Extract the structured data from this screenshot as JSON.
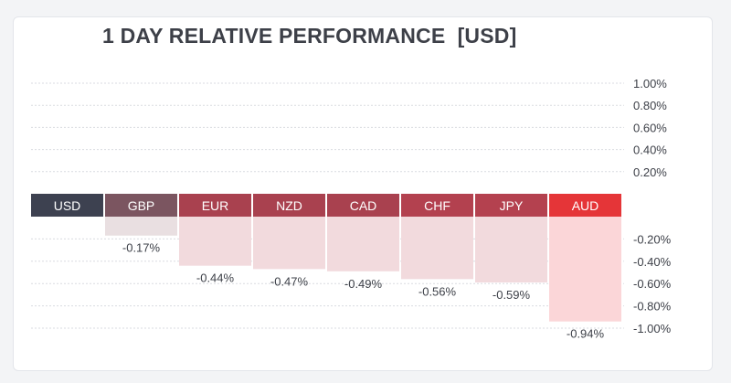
{
  "chart_data": {
    "type": "bar",
    "title": "1 DAY RELATIVE PERFORMANCE  [USD]",
    "categories": [
      "USD",
      "GBP",
      "EUR",
      "NZD",
      "CAD",
      "CHF",
      "JPY",
      "AUD"
    ],
    "values": [
      0,
      -0.17,
      -0.44,
      -0.47,
      -0.49,
      -0.56,
      -0.59,
      -0.94
    ],
    "value_labels": [
      "",
      "-0.17%",
      "-0.44%",
      "-0.47%",
      "-0.49%",
      "-0.56%",
      "-0.59%",
      "-0.94%"
    ],
    "ylim": [
      -1.0,
      1.0
    ],
    "yticks": [
      1.0,
      0.8,
      0.6,
      0.4,
      0.2,
      -0.2,
      -0.4,
      -0.6,
      -0.8,
      -1.0
    ],
    "ytick_labels": [
      "1.00%",
      "0.80%",
      "0.60%",
      "0.40%",
      "0.20%",
      "-0.20%",
      "-0.40%",
      "-0.60%",
      "-0.80%",
      "-1.00%"
    ],
    "xlabel": "",
    "ylabel": "",
    "grid": true,
    "colors": {
      "label_boxes": [
        "#3d4150",
        "#7b5560",
        "#a9414f",
        "#a9414f",
        "#a9414f",
        "#b3414f",
        "#b4414f",
        "#e53538"
      ],
      "bars": [
        "#eadfe1",
        "#e9dfe1",
        "#f2dadd",
        "#f2dadd",
        "#f2dadd",
        "#f2dadd",
        "#f2dadd",
        "#fbd6d8"
      ]
    }
  }
}
